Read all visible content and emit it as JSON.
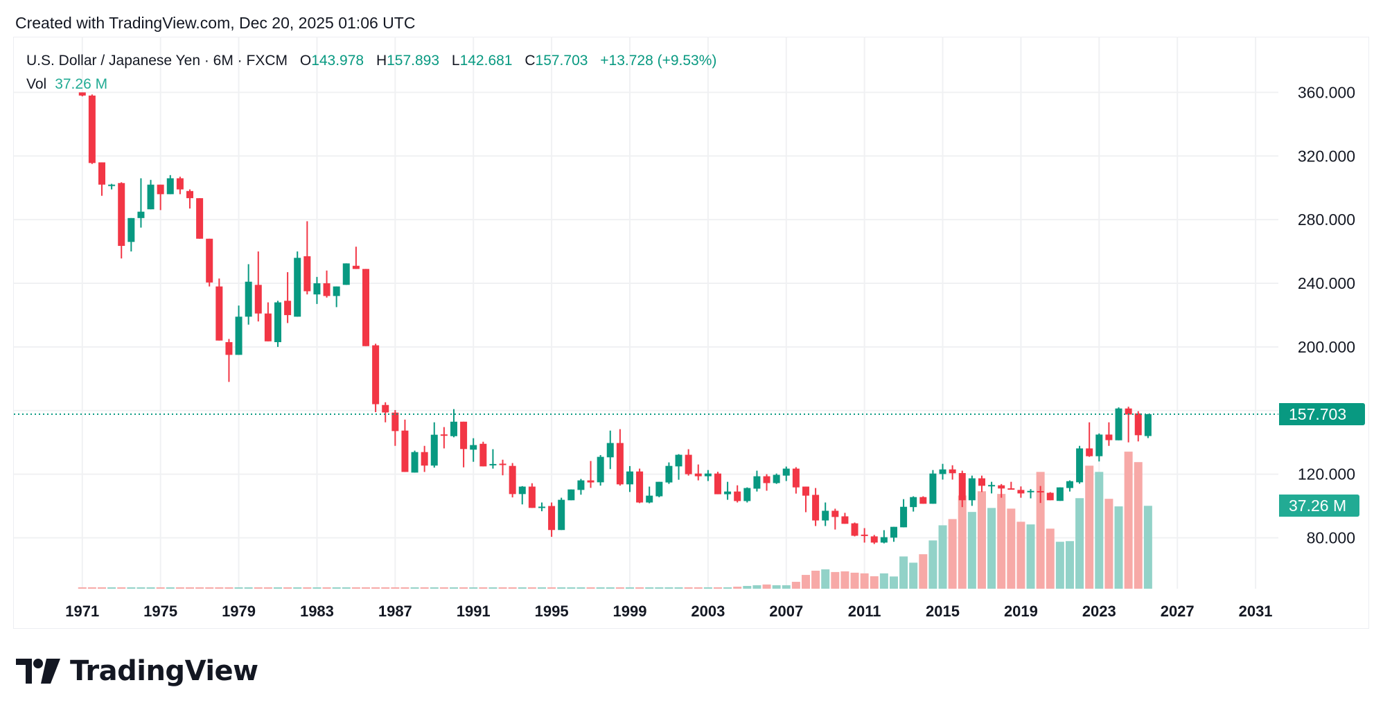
{
  "created_note": "Created with TradingView.com, Dec 20, 2025 01:06 UTC",
  "legend": {
    "symbol": "U.S. Dollar / Japanese Yen · 6M · FXCM",
    "o_label": "O",
    "o_value": "143.978",
    "h_label": "H",
    "h_value": "157.893",
    "l_label": "L",
    "l_value": "142.681",
    "c_label": "C",
    "c_value": "157.703",
    "change": "+13.728 (+9.53%)",
    "vol_label": "Vol",
    "vol_value": "37.26 M"
  },
  "price_tag": "157.703",
  "volume_tag": "37.26 M",
  "logo_text": "TradingView",
  "colors": {
    "up": "#089981",
    "down": "#F23645",
    "volume_up": "#92d2c8",
    "volume_down": "#f7a9a7",
    "volume_tag": "#22ab94"
  },
  "chart_data": {
    "type": "candlestick",
    "title": "",
    "xlabel": "",
    "ylabel": "",
    "ylim": [
      48,
      395
    ],
    "xlim": [
      "1967-07",
      "2032-03"
    ],
    "grid": true,
    "last_price": 157.703,
    "last_volume_millions": 37.26,
    "y_ticks": [
      {
        "value": 360,
        "label": "360.000"
      },
      {
        "value": 320,
        "label": "320.000"
      },
      {
        "value": 280,
        "label": "280.000"
      },
      {
        "value": 240,
        "label": "240.000"
      },
      {
        "value": 200,
        "label": "200.000"
      },
      {
        "value": 160,
        "label": ""
      },
      {
        "value": 120,
        "label": "120.000"
      },
      {
        "value": 80,
        "label": "80.000"
      }
    ],
    "x_ticks": [
      "1971",
      "1975",
      "1979",
      "1983",
      "1987",
      "1991",
      "1995",
      "1999",
      "2003",
      "2007",
      "2011",
      "2015",
      "2019",
      "2023",
      "2027",
      "2031"
    ],
    "columns": [
      "period",
      "open",
      "high",
      "low",
      "close",
      "volume_millions"
    ],
    "candles": [
      [
        "1971-01",
        360,
        360,
        357.5,
        358,
        0.3
      ],
      [
        "1971-07",
        358,
        358.7,
        315,
        315.6,
        0.3
      ],
      [
        "1972-01",
        316,
        316,
        295,
        302,
        0.3
      ],
      [
        "1972-07",
        301.5,
        302.5,
        299,
        302,
        0.3
      ],
      [
        "1973-01",
        303,
        303.5,
        255.6,
        263.5,
        0.3
      ],
      [
        "1973-07",
        266,
        281,
        260,
        281,
        0.3
      ],
      [
        "1974-01",
        281,
        306,
        275,
        285,
        0.3
      ],
      [
        "1974-07",
        286.5,
        305,
        286.5,
        302,
        0.3
      ],
      [
        "1975-01",
        302,
        302,
        286,
        296,
        0.3
      ],
      [
        "1975-07",
        296,
        308,
        296,
        306,
        0.3
      ],
      [
        "1976-01",
        306,
        307,
        296,
        299,
        0.3
      ],
      [
        "1976-07",
        298,
        299,
        287,
        293.5,
        0.3
      ],
      [
        "1977-01",
        293.5,
        293.5,
        268,
        268,
        0.3
      ],
      [
        "1977-07",
        268,
        268,
        238,
        240.5,
        0.3
      ],
      [
        "1978-01",
        238,
        243,
        204,
        204,
        0.3
      ],
      [
        "1978-07",
        203,
        205,
        178,
        195,
        0.3
      ],
      [
        "1979-01",
        195,
        226,
        195,
        219,
        0.3
      ],
      [
        "1979-07",
        219,
        252,
        214,
        241,
        0.3
      ],
      [
        "1980-01",
        239,
        260,
        216,
        221,
        0.3
      ],
      [
        "1980-07",
        221,
        228,
        203.5,
        203.5,
        0.3
      ],
      [
        "1981-01",
        203,
        229,
        200,
        228,
        0.3
      ],
      [
        "1981-07",
        229,
        247,
        215,
        220,
        0.3
      ],
      [
        "1982-01",
        219,
        260,
        219,
        256,
        0.3
      ],
      [
        "1982-07",
        257,
        279,
        233,
        235,
        0.3
      ],
      [
        "1983-01",
        233,
        244,
        227,
        240,
        0.3
      ],
      [
        "1983-07",
        240,
        248,
        231,
        232,
        0.3
      ],
      [
        "1984-01",
        232,
        238,
        225,
        238,
        0.3
      ],
      [
        "1984-07",
        239,
        252.5,
        239,
        252.5,
        0.3
      ],
      [
        "1985-01",
        251,
        263,
        249,
        249,
        0.3
      ],
      [
        "1985-07",
        249,
        249,
        200.5,
        200.5,
        0.3
      ],
      [
        "1986-01",
        201,
        202,
        159,
        164,
        0.3
      ],
      [
        "1986-07",
        163.5,
        165.2,
        152.6,
        158.8,
        0.3
      ],
      [
        "1987-01",
        158.7,
        160.3,
        137.8,
        147.1,
        0.3
      ],
      [
        "1987-07",
        147.4,
        154.3,
        121.4,
        121.4,
        0.3
      ],
      [
        "1988-01",
        121,
        134.8,
        121,
        133.9,
        0.3
      ],
      [
        "1988-07",
        133.9,
        137.8,
        121.4,
        125.4,
        0.3
      ],
      [
        "1989-01",
        125.4,
        152.6,
        124.1,
        144.8,
        0.3
      ],
      [
        "1989-07",
        145,
        149.6,
        136.2,
        144.8,
        0.3
      ],
      [
        "1990-01",
        143.9,
        160.9,
        143.2,
        153,
        0.3
      ],
      [
        "1990-07",
        153,
        153,
        124.3,
        135.8,
        0.3
      ],
      [
        "1991-01",
        135.4,
        142.6,
        127.8,
        138.3,
        0.3
      ],
      [
        "1991-07",
        139.1,
        140.4,
        124.9,
        124.9,
        0.3
      ],
      [
        "1992-01",
        126,
        135.7,
        123.5,
        126.4,
        0.3
      ],
      [
        "1992-07",
        126.6,
        129.1,
        119.3,
        126.2,
        0.3
      ],
      [
        "1993-01",
        125.2,
        127,
        105.4,
        107.5,
        0.3
      ],
      [
        "1993-07",
        107.5,
        112.5,
        101,
        112.2,
        0.3
      ],
      [
        "1994-01",
        112.2,
        114.3,
        98.8,
        98.8,
        0.3
      ],
      [
        "1994-07",
        99.2,
        102.2,
        96.7,
        99.6,
        0.3
      ],
      [
        "1995-01",
        100,
        102.2,
        80.6,
        84.9,
        0.3
      ],
      [
        "1995-07",
        84.9,
        105.2,
        84.9,
        103.9,
        0.3
      ],
      [
        "1996-01",
        103.6,
        110.4,
        103.6,
        110.4,
        0.3
      ],
      [
        "1996-07",
        110.1,
        117,
        107.1,
        116.1,
        0.3
      ],
      [
        "1997-01",
        116.1,
        128.3,
        111.4,
        114.8,
        0.3
      ],
      [
        "1997-07",
        114.9,
        132,
        112.8,
        130.9,
        0.3
      ],
      [
        "1998-01",
        130.6,
        147.4,
        123.2,
        139.6,
        0.3
      ],
      [
        "1998-07",
        139.6,
        148.3,
        112.8,
        113.6,
        0.3
      ],
      [
        "1999-01",
        113.6,
        125.1,
        108.8,
        121.7,
        0.3
      ],
      [
        "1999-07",
        121.7,
        123.5,
        101.8,
        102.2,
        0.3
      ],
      [
        "2000-01",
        102.2,
        112.2,
        101.7,
        106.5,
        0.3
      ],
      [
        "2000-07",
        106.1,
        115.2,
        105.5,
        115.2,
        0.3
      ],
      [
        "2001-01",
        114.8,
        127.4,
        113.9,
        125.2,
        0.3
      ],
      [
        "2001-07",
        124.9,
        132.6,
        116.5,
        132.2,
        0.3
      ],
      [
        "2002-01",
        132.2,
        135.7,
        119.1,
        120,
        0.3
      ],
      [
        "2002-07",
        120.4,
        126.1,
        116.1,
        118.7,
        0.6
      ],
      [
        "2003-01",
        118.7,
        122.6,
        115.7,
        120.4,
        0.6
      ],
      [
        "2003-07",
        120.4,
        121.5,
        107.4,
        107.4,
        0.6
      ],
      [
        "2004-01",
        107.4,
        115.2,
        103.9,
        109.1,
        0.6
      ],
      [
        "2004-07",
        109.1,
        113,
        102.2,
        103.1,
        0.9
      ],
      [
        "2005-01",
        103.1,
        111.7,
        102.2,
        111.3,
        1.25
      ],
      [
        "2005-07",
        110.9,
        122.2,
        109.1,
        118.7,
        1.56
      ],
      [
        "2006-01",
        118.7,
        120,
        109.6,
        114.4,
        1.9
      ],
      [
        "2006-07",
        114.4,
        120.4,
        113.9,
        119.6,
        1.56
      ],
      [
        "2007-01",
        119.1,
        124.8,
        115.7,
        123.5,
        1.56
      ],
      [
        "2007-07",
        123.5,
        124.4,
        107.8,
        111.7,
        3.1
      ],
      [
        "2008-01",
        112.2,
        112.2,
        96.1,
        106.5,
        6.2
      ],
      [
        "2008-07",
        107,
        111.3,
        87.4,
        90.9,
        8.1
      ],
      [
        "2009-01",
        90.9,
        102.2,
        87.4,
        97,
        8.7
      ],
      [
        "2009-07",
        97,
        98.3,
        85.2,
        93.1,
        7.5
      ],
      [
        "2010-01",
        93.5,
        95.7,
        88.8,
        88.8,
        7.8
      ],
      [
        "2010-07",
        89.1,
        89.6,
        80.9,
        81.3,
        7.2
      ],
      [
        "2011-01",
        82,
        86.1,
        77,
        81.9,
        6.9
      ],
      [
        "2011-07",
        80.9,
        81.8,
        76.1,
        77,
        5.6
      ],
      [
        "2012-01",
        77,
        84.8,
        76.5,
        80.4,
        6.9
      ],
      [
        "2012-07",
        80.1,
        86.9,
        77.5,
        86.9,
        5.5
      ],
      [
        "2013-01",
        86.6,
        104.3,
        86.6,
        99.5,
        14.5
      ],
      [
        "2013-07",
        99.3,
        106.1,
        96.5,
        105.6,
        11.7
      ],
      [
        "2014-01",
        105.6,
        106.1,
        101.4,
        101.4,
        15.5
      ],
      [
        "2014-07",
        101.4,
        122.6,
        101.4,
        120.4,
        21.7
      ],
      [
        "2015-01",
        120.1,
        126.5,
        116.6,
        123,
        28.5
      ],
      [
        "2015-07",
        123,
        125.6,
        116.6,
        120.6,
        31.3
      ],
      [
        "2016-01",
        120.7,
        122.2,
        99.3,
        103.6,
        41.9
      ],
      [
        "2016-07",
        103.6,
        119.1,
        100.1,
        117.4,
        34.5
      ],
      [
        "2017-01",
        117.4,
        119.1,
        108.8,
        112.7,
        43.8
      ],
      [
        "2017-07",
        112.9,
        115.2,
        107.9,
        113.2,
        36.3
      ],
      [
        "2018-01",
        113,
        113.8,
        105.2,
        111,
        42.6
      ],
      [
        "2018-07",
        111.1,
        115.2,
        110.3,
        110.3,
        36
      ],
      [
        "2019-01",
        110.1,
        112.3,
        105.2,
        107.9,
        30.1
      ],
      [
        "2019-07",
        109.2,
        110.6,
        104.8,
        109.5,
        28.9
      ],
      [
        "2020-01",
        109.4,
        112.6,
        101.9,
        109.2,
        52.5
      ],
      [
        "2020-07",
        108.3,
        108.7,
        103.6,
        103.6,
        27
      ],
      [
        "2021-01",
        103.2,
        111.7,
        103.2,
        111.7,
        21.1
      ],
      [
        "2021-07",
        111.3,
        116.1,
        109.1,
        115.6,
        21.4
      ],
      [
        "2022-01",
        114.9,
        137.8,
        114,
        136.2,
        40.7
      ],
      [
        "2022-07",
        136.2,
        152.6,
        130.9,
        131.3,
        55.3
      ],
      [
        "2023-01",
        131.3,
        145.6,
        128,
        144.9,
        52.5
      ],
      [
        "2023-07",
        144.9,
        152.6,
        137.8,
        141.4,
        40.4
      ],
      [
        "2024-01",
        141.3,
        162,
        141.3,
        161.3,
        37
      ],
      [
        "2024-07",
        161.3,
        162.4,
        140,
        157.5,
        61.6
      ],
      [
        "2025-01",
        158.2,
        159.6,
        140.6,
        144.5,
        56.9
      ],
      [
        "2025-07",
        143.978,
        157.893,
        142.681,
        157.703,
        37.26
      ]
    ]
  }
}
